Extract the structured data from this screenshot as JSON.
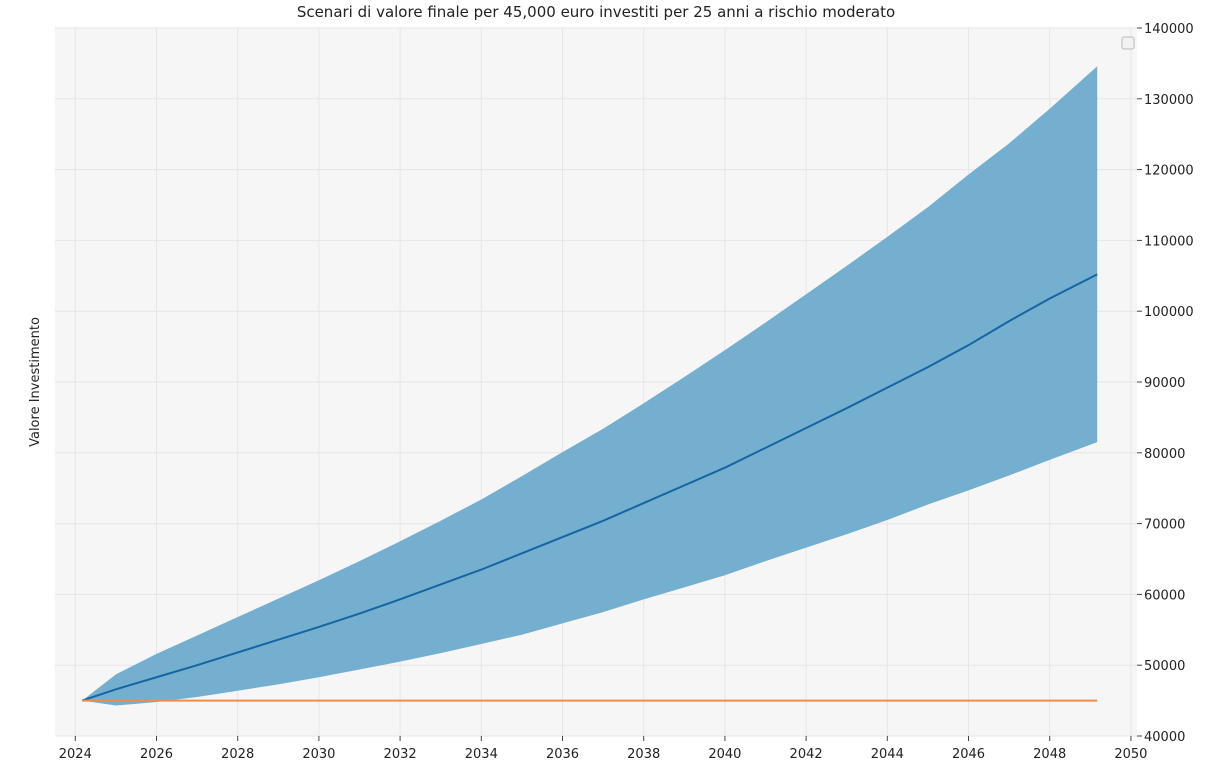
{
  "chart_data": {
    "type": "area",
    "title": "Scenari di valore finale per 45,000 euro investiti per 25 anni a rischio moderato",
    "xlabel": "",
    "ylabel": "Valore Investimento",
    "xlim": [
      2023.5,
      2050.15
    ],
    "ylim": [
      40000,
      140000
    ],
    "x_ticks": [
      2024,
      2026,
      2028,
      2030,
      2032,
      2034,
      2036,
      2038,
      2040,
      2042,
      2044,
      2046,
      2048,
      2050
    ],
    "y_ticks": [
      40000,
      50000,
      60000,
      70000,
      80000,
      90000,
      100000,
      110000,
      120000,
      130000,
      140000
    ],
    "x_tick_labels": [
      "2024",
      "2026",
      "2028",
      "2030",
      "2032",
      "2034",
      "2036",
      "2038",
      "2040",
      "2042",
      "2044",
      "2046",
      "2048",
      "2050"
    ],
    "y_tick_labels": [
      "40000",
      "50000",
      "60000",
      "70000",
      "80000",
      "90000",
      "100000",
      "110000",
      "120000",
      "130000",
      "140000"
    ],
    "y_axis_position": "right",
    "grid": true,
    "legend": "top-right (empty)",
    "x": [
      2024.17,
      2025,
      2026,
      2027,
      2028,
      2029,
      2030,
      2031,
      2032,
      2033,
      2034,
      2035,
      2036,
      2037,
      2038,
      2039,
      2040,
      2041,
      2042,
      2043,
      2044,
      2045,
      2046,
      2047,
      2048,
      2049.17
    ],
    "series": [
      {
        "type": "band",
        "color": "#74afd0",
        "upper": [
          45000,
          48700,
          51600,
          54200,
          56800,
          59400,
          62000,
          64700,
          67500,
          70400,
          73400,
          76700,
          80100,
          83400,
          87000,
          90700,
          94500,
          98400,
          102400,
          106400,
          110500,
          114700,
          119300,
          123700,
          128600,
          134600
        ],
        "lower": [
          45000,
          44300,
          44800,
          45500,
          46400,
          47300,
          48300,
          49400,
          50500,
          51700,
          53000,
          54300,
          55900,
          57500,
          59300,
          61000,
          62700,
          64700,
          66600,
          68500,
          70500,
          72700,
          74700,
          76800,
          79000,
          81500
        ]
      },
      {
        "type": "line",
        "color": "#1565a3",
        "values": [
          45000,
          46600,
          48300,
          50000,
          51800,
          53600,
          55400,
          57300,
          59300,
          61400,
          63500,
          65800,
          68100,
          70400,
          72900,
          75400,
          77900,
          80700,
          83500,
          86300,
          89200,
          92100,
          95200,
          98600,
          101800,
          105200
        ]
      },
      {
        "type": "line",
        "color": "#f28b46",
        "values": [
          45000,
          45000,
          45000,
          45000,
          45000,
          45000,
          45000,
          45000,
          45000,
          45000,
          45000,
          45000,
          45000,
          45000,
          45000,
          45000,
          45000,
          45000,
          45000,
          45000,
          45000,
          45000,
          45000,
          45000,
          45000,
          45000
        ]
      }
    ],
    "colors": {
      "plot_background": "#f6f6f6",
      "grid": "#e6e6e6"
    }
  }
}
